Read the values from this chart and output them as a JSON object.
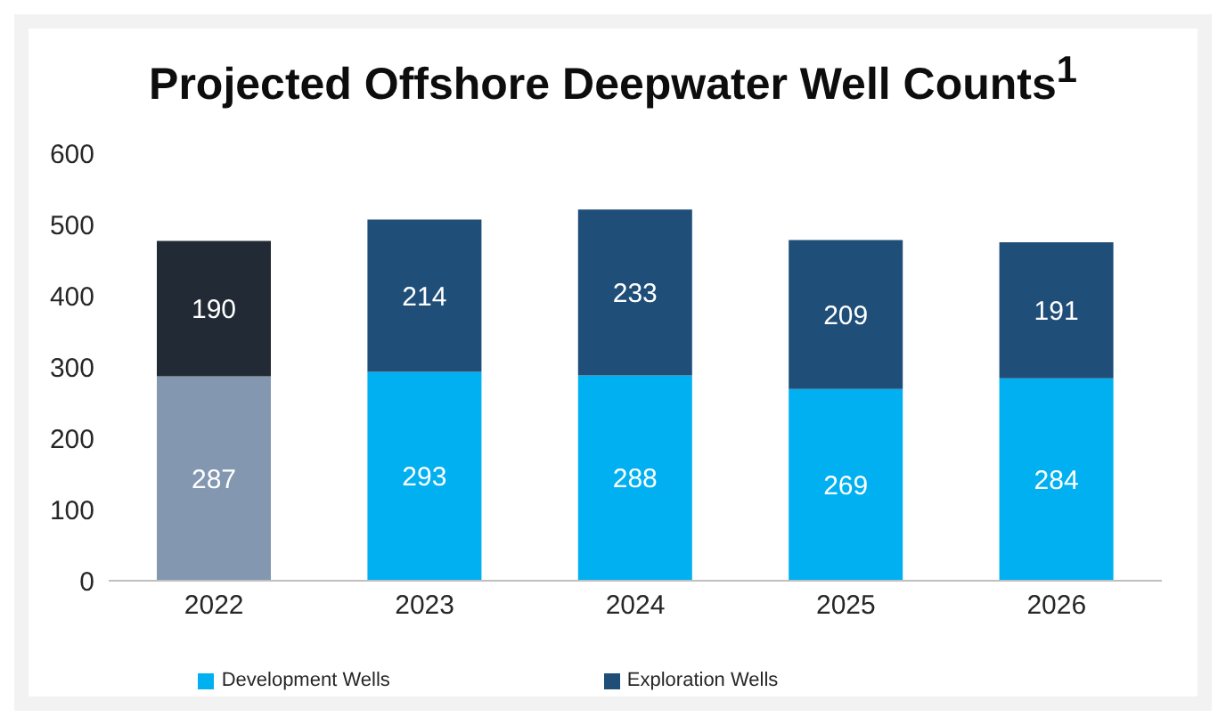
{
  "chart_data": {
    "type": "bar",
    "title": "Projected Offshore Deepwater Well Counts$^{1}$",
    "categories": [
      "2022",
      "2023",
      "2024",
      "2025",
      "2026"
    ],
    "stacked": true,
    "data_labels": true,
    "ylim": [
      0,
      600
    ],
    "yticks": [
      0,
      100,
      200,
      300,
      400,
      500,
      600
    ],
    "grid": false,
    "legend": "bottom",
    "series": [
      {
        "name": "Development Wells",
        "color": "#00b0f0",
        "colors": [
          "#8497b0",
          "#00b0f0",
          "#00b0f0",
          "#00b0f0",
          "#00b0f0"
        ],
        "values": [
          287,
          293,
          288,
          269,
          284
        ]
      },
      {
        "name": "Exploration Wells",
        "color": "#1f4e79",
        "colors": [
          "#222a35",
          "#1f4e79",
          "#1f4e79",
          "#1f4e79",
          "#1f4e79"
        ],
        "values": [
          190,
          214,
          233,
          209,
          191
        ]
      }
    ]
  }
}
